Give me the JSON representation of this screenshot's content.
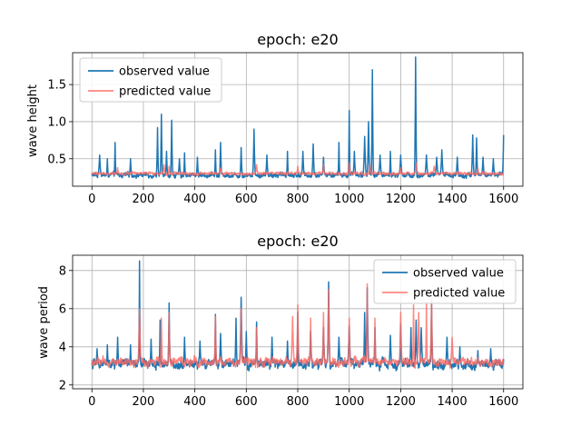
{
  "chart_data": [
    {
      "type": "line",
      "title": "epoch: e20",
      "xlabel": "",
      "ylabel": "wave height",
      "xlim": [
        -75,
        1675
      ],
      "ylim": [
        0.13,
        1.93
      ],
      "xticks": [
        0,
        200,
        400,
        600,
        800,
        1000,
        1200,
        1400,
        1600
      ],
      "yticks": [
        0.5,
        1.0,
        1.5
      ],
      "ytick_labels": [
        "0.5",
        "1.0",
        "1.5"
      ],
      "grid": true,
      "legend_position": "upper-left",
      "baseline": {
        "observed": 0.28,
        "predicted": 0.3
      },
      "noise": {
        "observed": 0.06,
        "predicted": 0.035
      },
      "series": [
        {
          "name": "observed value",
          "color": "#1f77b4",
          "peaks": [
            [
              30,
              0.55
            ],
            [
              60,
              0.5
            ],
            [
              90,
              0.72
            ],
            [
              150,
              0.5
            ],
            [
              255,
              0.92
            ],
            [
              270,
              1.1
            ],
            [
              290,
              0.6
            ],
            [
              310,
              1.02
            ],
            [
              340,
              0.5
            ],
            [
              360,
              0.58
            ],
            [
              410,
              0.52
            ],
            [
              480,
              0.62
            ],
            [
              500,
              0.72
            ],
            [
              580,
              0.65
            ],
            [
              630,
              0.9
            ],
            [
              680,
              0.55
            ],
            [
              760,
              0.6
            ],
            [
              820,
              0.6
            ],
            [
              860,
              0.7
            ],
            [
              900,
              0.52
            ],
            [
              960,
              0.72
            ],
            [
              1000,
              1.15
            ],
            [
              1020,
              0.6
            ],
            [
              1060,
              0.8
            ],
            [
              1075,
              1.0
            ],
            [
              1090,
              1.7
            ],
            [
              1120,
              0.55
            ],
            [
              1160,
              0.6
            ],
            [
              1200,
              0.55
            ],
            [
              1258,
              1.87
            ],
            [
              1300,
              0.55
            ],
            [
              1340,
              0.52
            ],
            [
              1360,
              0.62
            ],
            [
              1420,
              0.52
            ],
            [
              1480,
              0.82
            ],
            [
              1495,
              0.78
            ],
            [
              1520,
              0.52
            ],
            [
              1560,
              0.5
            ],
            [
              1600,
              0.82
            ]
          ]
        },
        {
          "name": "predicted value",
          "color": "#ff6961",
          "opacity": 0.8,
          "peaks": [
            [
              100,
              0.38
            ],
            [
              280,
              0.42
            ],
            [
              300,
              0.4
            ],
            [
              500,
              0.38
            ],
            [
              640,
              0.42
            ],
            [
              800,
              0.4
            ],
            [
              900,
              0.43
            ],
            [
              1000,
              0.45
            ],
            [
              1080,
              0.42
            ],
            [
              1200,
              0.38
            ],
            [
              1260,
              0.45
            ],
            [
              1330,
              0.4
            ],
            [
              1500,
              0.38
            ]
          ]
        }
      ]
    },
    {
      "type": "line",
      "title": "epoch: e20",
      "xlabel": "",
      "ylabel": "wave period",
      "xlim": [
        -75,
        1675
      ],
      "ylim": [
        1.8,
        8.8
      ],
      "xticks": [
        0,
        200,
        400,
        600,
        800,
        1000,
        1200,
        1400,
        1600
      ],
      "yticks": [
        2,
        4,
        6,
        8
      ],
      "ytick_labels": [
        "2",
        "4",
        "6",
        "8"
      ],
      "grid": true,
      "legend_position": "upper-right",
      "baseline": {
        "observed": 3.1,
        "predicted": 3.2
      },
      "noise": {
        "observed": 0.45,
        "predicted": 0.4
      },
      "series": [
        {
          "name": "observed value",
          "color": "#1f77b4",
          "peaks": [
            [
              20,
              3.9
            ],
            [
              60,
              4.1
            ],
            [
              100,
              4.5
            ],
            [
              150,
              4.1
            ],
            [
              185,
              8.5
            ],
            [
              230,
              4.4
            ],
            [
              265,
              5.4
            ],
            [
              300,
              6.3
            ],
            [
              360,
              4.5
            ],
            [
              420,
              4.3
            ],
            [
              480,
              5.7
            ],
            [
              500,
              4.7
            ],
            [
              560,
              5.5
            ],
            [
              580,
              6.6
            ],
            [
              600,
              4.8
            ],
            [
              640,
              5.3
            ],
            [
              700,
              4.5
            ],
            [
              760,
              4.3
            ],
            [
              800,
              5.8
            ],
            [
              850,
              4.8
            ],
            [
              900,
              5.0
            ],
            [
              920,
              7.4
            ],
            [
              960,
              4.5
            ],
            [
              1000,
              5.1
            ],
            [
              1060,
              5.8
            ],
            [
              1070,
              7.1
            ],
            [
              1100,
              5.0
            ],
            [
              1160,
              4.6
            ],
            [
              1200,
              5.2
            ],
            [
              1240,
              5.0
            ],
            [
              1260,
              5.4
            ],
            [
              1280,
              5.0
            ],
            [
              1320,
              6.3
            ],
            [
              1380,
              4.5
            ],
            [
              1430,
              4.0
            ],
            [
              1500,
              3.8
            ],
            [
              1550,
              3.9
            ]
          ]
        },
        {
          "name": "predicted value",
          "color": "#ff6961",
          "opacity": 0.8,
          "peaks": [
            [
              185,
              6.0
            ],
            [
              270,
              5.5
            ],
            [
              300,
              5.8
            ],
            [
              480,
              5.6
            ],
            [
              580,
              6.0
            ],
            [
              640,
              5.0
            ],
            [
              780,
              5.6
            ],
            [
              800,
              6.2
            ],
            [
              850,
              5.5
            ],
            [
              900,
              5.8
            ],
            [
              920,
              7.0
            ],
            [
              1000,
              5.5
            ],
            [
              1070,
              7.3
            ],
            [
              1100,
              5.5
            ],
            [
              1200,
              5.8
            ],
            [
              1250,
              6.2
            ],
            [
              1270,
              5.8
            ],
            [
              1300,
              6.3
            ],
            [
              1320,
              6.5
            ],
            [
              1400,
              4.5
            ]
          ]
        }
      ]
    }
  ]
}
